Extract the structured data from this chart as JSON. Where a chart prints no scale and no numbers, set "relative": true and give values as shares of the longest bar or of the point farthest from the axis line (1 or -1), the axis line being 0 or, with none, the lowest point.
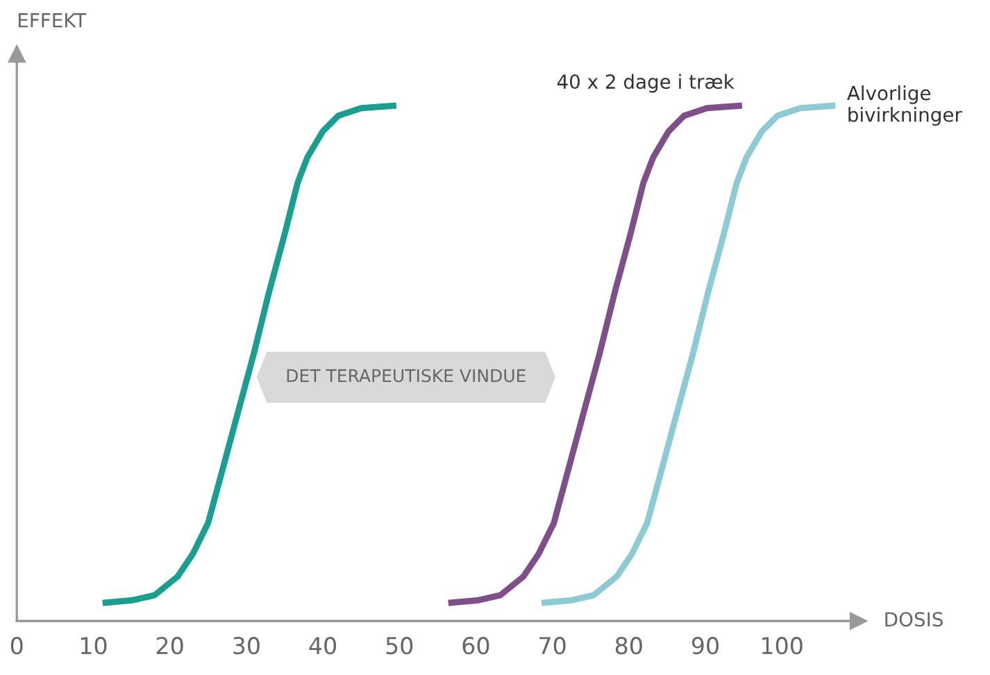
{
  "chart_data": {
    "type": "line",
    "relative": true,
    "xlabel": "DOSIS",
    "ylabel": "EFFEKT",
    "xlim": [
      0,
      110
    ],
    "xticks": [
      0,
      10,
      20,
      30,
      40,
      50,
      60,
      70,
      80,
      90,
      100
    ],
    "tick_labels": "x",
    "grid": false,
    "marker": "none",
    "line_style": "solid",
    "annotations": [
      "DET TERAPEUTISKE VINDUE"
    ],
    "series": [
      {
        "color": "#1a9e8f",
        "x": [
          11.2,
          15,
          18,
          21,
          23,
          25,
          27,
          29,
          31,
          33,
          35,
          36.7,
          38,
          40,
          42,
          45,
          49.6
        ],
        "values": [
          0.035,
          0.04,
          0.05,
          0.086,
          0.13,
          0.19,
          0.3,
          0.41,
          0.52,
          0.64,
          0.75,
          0.85,
          0.9,
          0.95,
          0.98,
          0.995,
          1.0
        ]
      },
      {
        "name": "40 x 2 dage i træk",
        "color": "#7f4f8a",
        "x": [
          56.4,
          60.2,
          63.2,
          66.2,
          68.2,
          70.2,
          72.2,
          74.2,
          76.2,
          78.2,
          80.2,
          81.9,
          83.2,
          85.2,
          87.2,
          90.2,
          94.8
        ],
        "values": [
          0.035,
          0.04,
          0.05,
          0.086,
          0.13,
          0.19,
          0.3,
          0.41,
          0.52,
          0.64,
          0.75,
          0.85,
          0.9,
          0.95,
          0.98,
          0.995,
          1.0
        ]
      },
      {
        "name": "Alvorlige bivirkninger",
        "color": "#8ccbd3",
        "x": [
          68.6,
          72.4,
          75.4,
          78.4,
          80.4,
          82.4,
          84.4,
          86.4,
          88.4,
          90.4,
          92.4,
          94.1,
          95.4,
          97.4,
          99.4,
          102.4,
          107.0
        ],
        "values": [
          0.035,
          0.04,
          0.05,
          0.086,
          0.13,
          0.19,
          0.3,
          0.41,
          0.52,
          0.64,
          0.75,
          0.85,
          0.9,
          0.95,
          0.98,
          0.995,
          1.0
        ]
      }
    ]
  }
}
